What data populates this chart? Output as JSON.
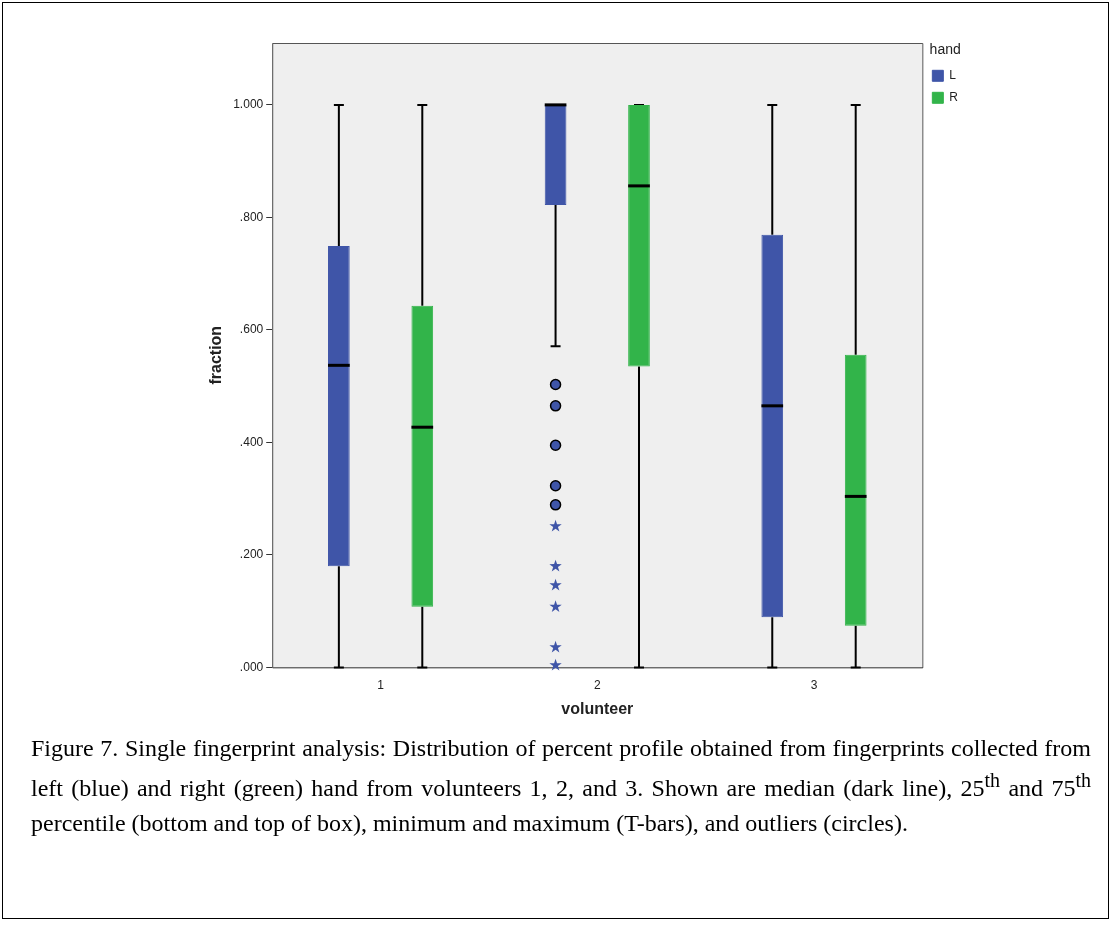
{
  "chart_data": {
    "type": "box",
    "xlabel": "volunteer",
    "ylabel": "fraction",
    "legend_title": "hand",
    "legend": "top right",
    "grid": false,
    "categories": [
      "1",
      "2",
      "3"
    ],
    "ylim": [
      0,
      1.11
    ],
    "yticks": [
      {
        "value": 0,
        "label": ".000"
      },
      {
        "value": 0.2,
        "label": ".200"
      },
      {
        "value": 0.4,
        "label": ".400"
      },
      {
        "value": 0.6,
        "label": ".600"
      },
      {
        "value": 0.8,
        "label": ".800"
      },
      {
        "value": 1,
        "label": "1.000"
      }
    ],
    "series": [
      {
        "name": "L",
        "color": "#3f55a8",
        "boxes": [
          {
            "low": 0,
            "q1": 0.18,
            "median": 0.537,
            "q3": 0.749,
            "high": 1
          },
          {
            "low": 0.571,
            "q1": 0.822,
            "median": 1,
            "q3": 1,
            "high": 1,
            "outliers": [
              0.503,
              0.465,
              0.395,
              0.323,
              0.289,
              0.251,
              0.18,
              0.146,
              0.108,
              0.036,
              0.004
            ]
          },
          {
            "low": 0,
            "q1": 0.089,
            "median": 0.465,
            "q3": 0.769,
            "high": 1
          }
        ]
      },
      {
        "name": "R",
        "color": "#32b44a",
        "boxes": [
          {
            "low": 0,
            "q1": 0.108,
            "median": 0.427,
            "q3": 0.643,
            "high": 1
          },
          {
            "low": 0,
            "q1": 0.535,
            "median": 0.856,
            "q3": 1,
            "high": 1
          },
          {
            "low": 0,
            "q1": 0.074,
            "median": 0.304,
            "q3": 0.556,
            "high": 1
          }
        ]
      }
    ],
    "annotations": [
      "Figure 7. Single fingerprint analysis: Distribution of percent profile obtained from fingerprints collected from left (blue) and right (green) hand from volunteers 1, 2, and 3. Shown are median (dark line), 25$^{th}$ and 75$^{th}$ percentile (bottom and top of box), minimum and maximum (T-bars), and outliers (circles)."
    ]
  }
}
